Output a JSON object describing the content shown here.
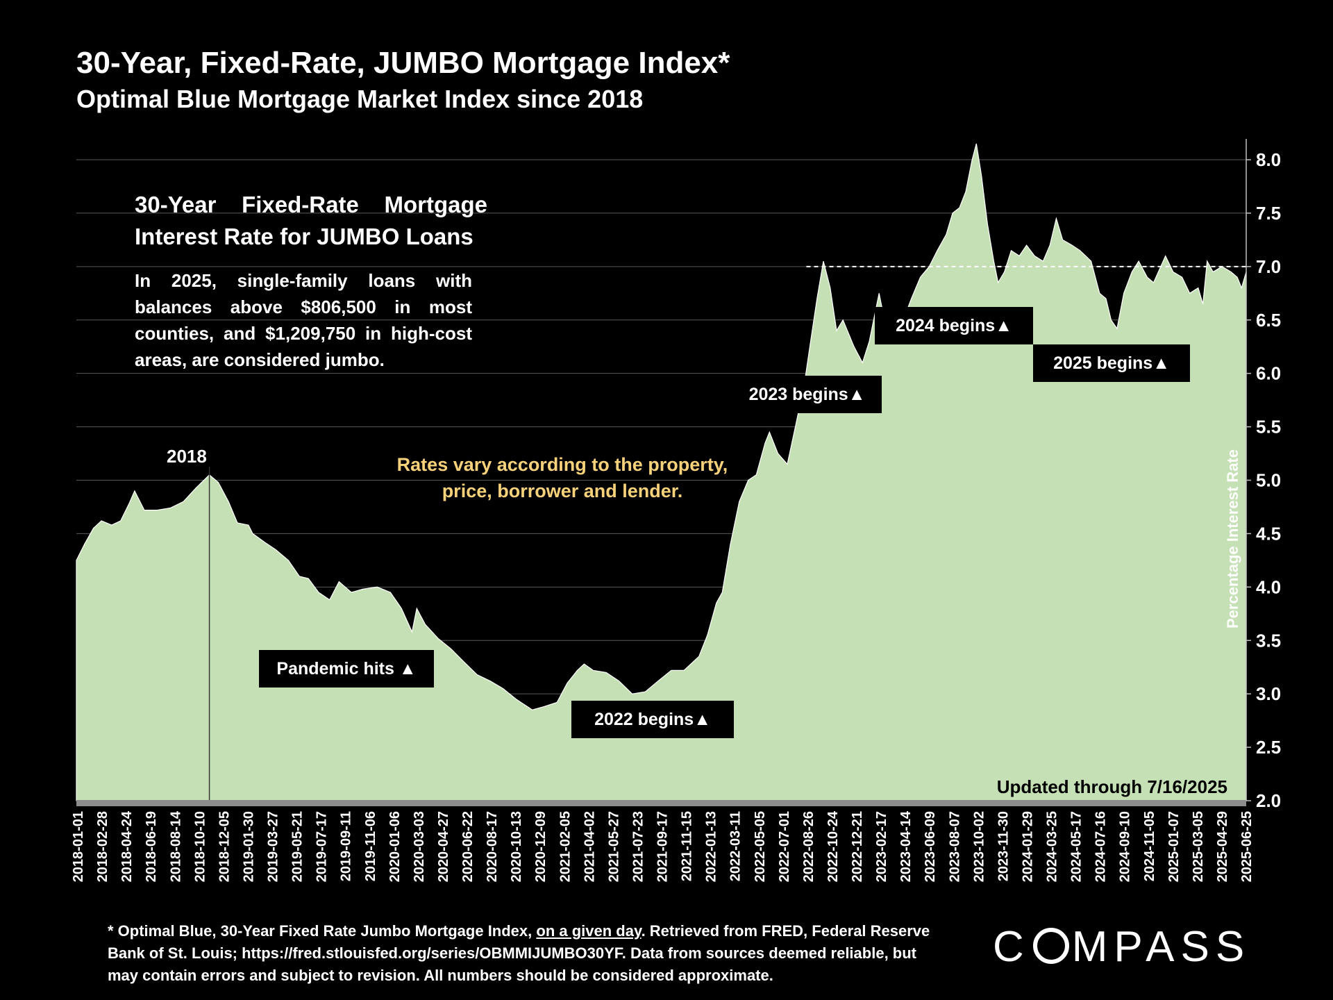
{
  "header": {
    "title": "30-Year, Fixed-Rate, JUMBO Mortgage Index*",
    "subtitle": "Optimal Blue Mortgage Market Index since 2018"
  },
  "info_box": {
    "title_line1": "30-Year Fixed-Rate Mortgage",
    "title_line2": "Interest Rate for JUMBO Loans",
    "body": "In 2025, single-family loans with balances above $806,500 in most counties, and $1,209,750 in high-cost areas, are considered jumbo."
  },
  "annotations": {
    "year_2018": "2018",
    "pandemic": "Pandemic hits ▲",
    "begins_2022": "2022 begins▲",
    "begins_2023": "2023 begins▲",
    "begins_2024": "2024 begins▲",
    "begins_2025": "2025 begins▲",
    "note_line1": "Rates vary according to the property,",
    "note_line2": "price, borrower and lender.",
    "updated": "Updated through 7/16/2025"
  },
  "footnote": {
    "part1": "* Optimal Blue, 30-Year Fixed Rate Jumbo Mortgage Index, ",
    "underlined": "on a given day",
    "part2": ". Retrieved from FRED, Federal Reserve Bank of St. Louis; https://fred.stlouisfed.org/series/OBMMIJUMBO30YF. Data from sources deemed reliable, but may contain errors and subject to revision. All numbers should be considered approximate."
  },
  "logo": {
    "text_c": "C",
    "text_rest": "MPASS"
  },
  "colors": {
    "area_fill": "#c5e0b4",
    "background": "#000000",
    "note": "#f7d27a",
    "axis_bar": "#8c8c8c"
  },
  "chart_data": {
    "type": "area",
    "ylabel": "Percentage Interest Rate",
    "ylim": [
      2.0,
      8.0
    ],
    "y_ticks": [
      "2.0",
      "2.5",
      "3.0",
      "3.5",
      "4.0",
      "4.5",
      "5.0",
      "5.5",
      "6.0",
      "6.5",
      "7.0",
      "7.5",
      "8.0"
    ],
    "y_axis_side": "right",
    "grid": true,
    "reference_line": {
      "y": 7.0,
      "style": "dashed",
      "from": "2022-09-15",
      "to": "2025-07-16"
    },
    "x_tick_labels": [
      "2018-01-01",
      "2018-02-28",
      "2018-04-24",
      "2018-06-19",
      "2018-08-14",
      "2018-10-10",
      "2018-12-05",
      "2019-01-30",
      "2019-03-27",
      "2019-05-21",
      "2019-07-17",
      "2019-09-11",
      "2019-11-06",
      "2020-01-06",
      "2020-03-03",
      "2020-04-27",
      "2020-06-22",
      "2020-08-17",
      "2020-10-13",
      "2020-12-09",
      "2021-02-05",
      "2021-04-02",
      "2021-05-27",
      "2021-07-23",
      "2021-09-17",
      "2021-11-15",
      "2022-01-13",
      "2022-03-11",
      "2022-05-05",
      "2022-07-01",
      "2022-08-26",
      "2022-10-24",
      "2022-12-21",
      "2023-02-17",
      "2023-04-14",
      "2023-06-09",
      "2023-08-07",
      "2023-10-02",
      "2023-11-30",
      "2024-01-29",
      "2024-03-25",
      "2024-05-17",
      "2024-07-16",
      "2024-09-10",
      "2024-11-05",
      "2025-01-07",
      "2025-03-05",
      "2025-04-29",
      "2025-06-25"
    ],
    "series": [
      {
        "values": [
          [
            "2018-01-01",
            4.25
          ],
          [
            "2018-01-20",
            4.4
          ],
          [
            "2018-02-10",
            4.55
          ],
          [
            "2018-03-01",
            4.62
          ],
          [
            "2018-03-25",
            4.58
          ],
          [
            "2018-04-15",
            4.62
          ],
          [
            "2018-05-05",
            4.78
          ],
          [
            "2018-05-18",
            4.9
          ],
          [
            "2018-06-10",
            4.72
          ],
          [
            "2018-07-10",
            4.72
          ],
          [
            "2018-08-10",
            4.74
          ],
          [
            "2018-09-10",
            4.8
          ],
          [
            "2018-10-10",
            4.93
          ],
          [
            "2018-11-10",
            5.05
          ],
          [
            "2018-12-01",
            4.98
          ],
          [
            "2018-12-25",
            4.8
          ],
          [
            "2019-01-15",
            4.6
          ],
          [
            "2019-02-10",
            4.58
          ],
          [
            "2019-02-20",
            4.5
          ],
          [
            "2019-03-20",
            4.42
          ],
          [
            "2019-04-15",
            4.35
          ],
          [
            "2019-05-15",
            4.25
          ],
          [
            "2019-06-10",
            4.1
          ],
          [
            "2019-07-01",
            4.08
          ],
          [
            "2019-07-25",
            3.95
          ],
          [
            "2019-08-20",
            3.88
          ],
          [
            "2019-09-11",
            4.05
          ],
          [
            "2019-10-10",
            3.95
          ],
          [
            "2019-11-06",
            3.98
          ],
          [
            "2019-12-10",
            4.0
          ],
          [
            "2020-01-10",
            3.95
          ],
          [
            "2020-02-05",
            3.8
          ],
          [
            "2020-03-01",
            3.58
          ],
          [
            "2020-03-12",
            3.8
          ],
          [
            "2020-04-01",
            3.65
          ],
          [
            "2020-05-01",
            3.52
          ],
          [
            "2020-06-01",
            3.42
          ],
          [
            "2020-07-01",
            3.3
          ],
          [
            "2020-08-01",
            3.18
          ],
          [
            "2020-09-01",
            3.12
          ],
          [
            "2020-10-01",
            3.05
          ],
          [
            "2020-11-01",
            2.95
          ],
          [
            "2020-12-09",
            2.85
          ],
          [
            "2021-01-05",
            2.88
          ],
          [
            "2021-02-05",
            2.92
          ],
          [
            "2021-03-01",
            3.1
          ],
          [
            "2021-03-25",
            3.22
          ],
          [
            "2021-04-10",
            3.28
          ],
          [
            "2021-05-01",
            3.22
          ],
          [
            "2021-06-01",
            3.2
          ],
          [
            "2021-07-01",
            3.12
          ],
          [
            "2021-08-01",
            3.0
          ],
          [
            "2021-09-01",
            3.02
          ],
          [
            "2021-10-01",
            3.12
          ],
          [
            "2021-11-01",
            3.22
          ],
          [
            "2021-12-01",
            3.22
          ],
          [
            "2022-01-05",
            3.35
          ],
          [
            "2022-01-25",
            3.55
          ],
          [
            "2022-02-15",
            3.85
          ],
          [
            "2022-03-01",
            3.95
          ],
          [
            "2022-03-20",
            4.4
          ],
          [
            "2022-04-10",
            4.8
          ],
          [
            "2022-05-01",
            5.0
          ],
          [
            "2022-05-20",
            5.05
          ],
          [
            "2022-06-10",
            5.35
          ],
          [
            "2022-06-20",
            5.45
          ],
          [
            "2022-07-10",
            5.25
          ],
          [
            "2022-08-01",
            5.15
          ],
          [
            "2022-08-20",
            5.5
          ],
          [
            "2022-09-10",
            5.9
          ],
          [
            "2022-09-25",
            6.3
          ],
          [
            "2022-10-10",
            6.7
          ],
          [
            "2022-10-25",
            7.05
          ],
          [
            "2022-11-10",
            6.8
          ],
          [
            "2022-11-25",
            6.4
          ],
          [
            "2022-12-10",
            6.5
          ],
          [
            "2023-01-05",
            6.25
          ],
          [
            "2023-01-25",
            6.1
          ],
          [
            "2023-02-10",
            6.3
          ],
          [
            "2023-03-05",
            6.75
          ],
          [
            "2023-03-20",
            6.45
          ],
          [
            "2023-04-10",
            6.55
          ],
          [
            "2023-05-01",
            6.5
          ],
          [
            "2023-05-20",
            6.7
          ],
          [
            "2023-06-10",
            6.9
          ],
          [
            "2023-07-01",
            7.0
          ],
          [
            "2023-07-20",
            7.15
          ],
          [
            "2023-08-10",
            7.3
          ],
          [
            "2023-08-25",
            7.5
          ],
          [
            "2023-09-10",
            7.55
          ],
          [
            "2023-09-25",
            7.7
          ],
          [
            "2023-10-10",
            8.0
          ],
          [
            "2023-10-20",
            8.15
          ],
          [
            "2023-11-01",
            7.85
          ],
          [
            "2023-11-15",
            7.4
          ],
          [
            "2023-11-30",
            7.05
          ],
          [
            "2023-12-10",
            6.85
          ],
          [
            "2023-12-25",
            6.95
          ],
          [
            "2024-01-10",
            7.15
          ],
          [
            "2024-01-29",
            7.1
          ],
          [
            "2024-02-15",
            7.2
          ],
          [
            "2024-03-05",
            7.1
          ],
          [
            "2024-03-25",
            7.05
          ],
          [
            "2024-04-10",
            7.2
          ],
          [
            "2024-04-25",
            7.45
          ],
          [
            "2024-05-10",
            7.25
          ],
          [
            "2024-06-01",
            7.2
          ],
          [
            "2024-06-20",
            7.15
          ],
          [
            "2024-07-16",
            7.05
          ],
          [
            "2024-08-05",
            6.75
          ],
          [
            "2024-08-20",
            6.7
          ],
          [
            "2024-09-01",
            6.5
          ],
          [
            "2024-09-15",
            6.42
          ],
          [
            "2024-10-01",
            6.75
          ],
          [
            "2024-10-20",
            6.95
          ],
          [
            "2024-11-05",
            7.05
          ],
          [
            "2024-11-25",
            6.9
          ],
          [
            "2024-12-10",
            6.85
          ],
          [
            "2025-01-07",
            7.1
          ],
          [
            "2025-01-25",
            6.95
          ],
          [
            "2025-02-15",
            6.9
          ],
          [
            "2025-03-05",
            6.75
          ],
          [
            "2025-03-25",
            6.8
          ],
          [
            "2025-04-05",
            6.65
          ],
          [
            "2025-04-15",
            7.05
          ],
          [
            "2025-04-29",
            6.95
          ],
          [
            "2025-05-20",
            7.0
          ],
          [
            "2025-06-10",
            6.95
          ],
          [
            "2025-06-25",
            6.9
          ],
          [
            "2025-07-05",
            6.8
          ],
          [
            "2025-07-16",
            6.95
          ]
        ]
      }
    ]
  }
}
